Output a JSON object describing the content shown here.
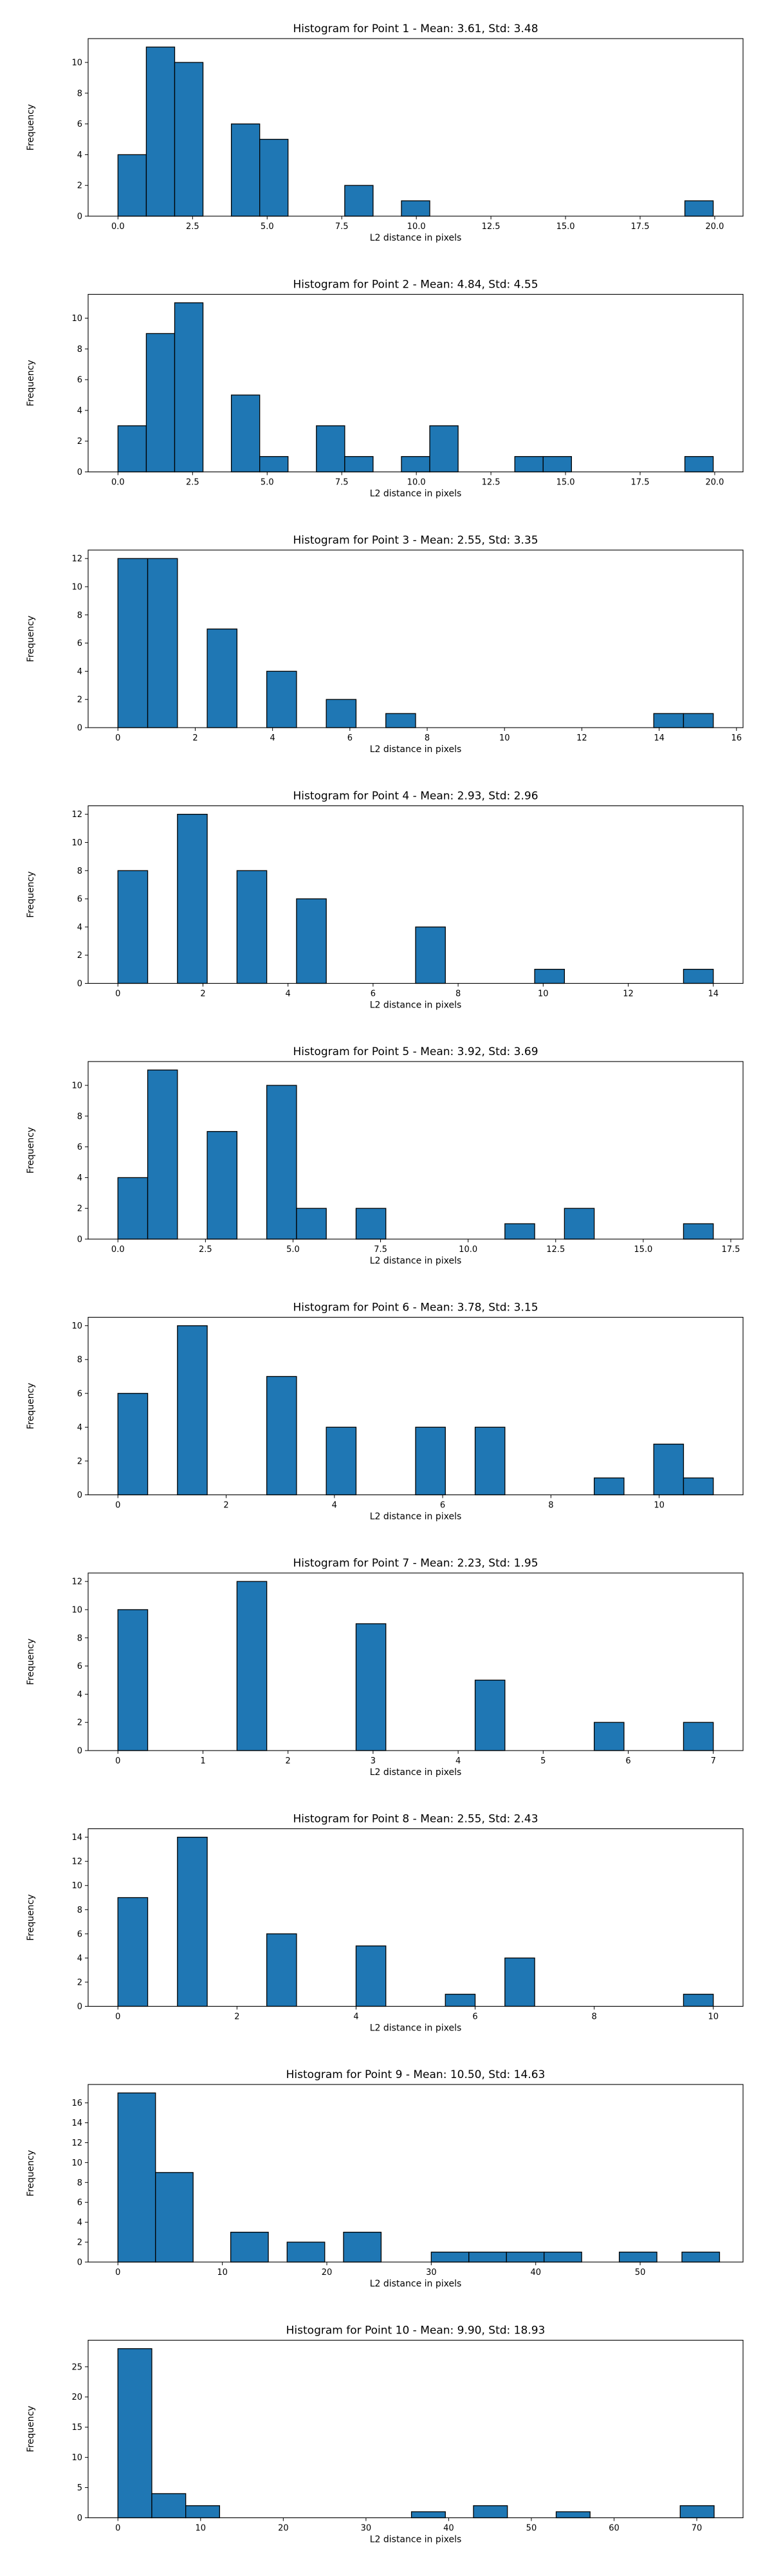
{
  "figure": {
    "background": "#ffffff",
    "bar_color": "#1f77b4",
    "edge_color": "#000000"
  },
  "chart_data": [
    {
      "type": "bar",
      "title": "Histogram for Point 1 - Mean: 3.61, Std: 3.48",
      "xlabel": "L2 distance in pixels",
      "ylabel": "Frequency",
      "xlim": [
        -1.0,
        20.95
      ],
      "ylim": [
        0,
        11.55
      ],
      "xticks": [
        0,
        2.5,
        5,
        7.5,
        10,
        12.5,
        15,
        17.5,
        20
      ],
      "xtick_labels": [
        "0.0",
        "2.5",
        "5.0",
        "7.5",
        "10.0",
        "12.5",
        "15.0",
        "17.5",
        "20.0"
      ],
      "yticks": [
        0,
        2,
        4,
        6,
        8,
        10
      ],
      "bins": [
        {
          "start": 0.0,
          "end": 0.95,
          "count": 4
        },
        {
          "start": 0.95,
          "end": 1.9,
          "count": 11
        },
        {
          "start": 1.9,
          "end": 2.85,
          "count": 10
        },
        {
          "start": 3.8,
          "end": 4.75,
          "count": 6
        },
        {
          "start": 4.75,
          "end": 5.7,
          "count": 5
        },
        {
          "start": 7.6,
          "end": 8.55,
          "count": 2
        },
        {
          "start": 9.5,
          "end": 10.45,
          "count": 1
        },
        {
          "start": 19.0,
          "end": 19.95,
          "count": 1
        }
      ]
    },
    {
      "type": "bar",
      "title": "Histogram for Point 2 - Mean: 4.84, Std: 4.55",
      "xlabel": "L2 distance in pixels",
      "ylabel": "Frequency",
      "xlim": [
        -1.0,
        20.95
      ],
      "ylim": [
        0,
        11.55
      ],
      "xticks": [
        0,
        2.5,
        5,
        7.5,
        10,
        12.5,
        15,
        17.5,
        20
      ],
      "xtick_labels": [
        "0.0",
        "2.5",
        "5.0",
        "7.5",
        "10.0",
        "12.5",
        "15.0",
        "17.5",
        "20.0"
      ],
      "yticks": [
        0,
        2,
        4,
        6,
        8,
        10
      ],
      "bins": [
        {
          "start": 0.0,
          "end": 0.95,
          "count": 3
        },
        {
          "start": 0.95,
          "end": 1.9,
          "count": 9
        },
        {
          "start": 1.9,
          "end": 2.85,
          "count": 11
        },
        {
          "start": 3.8,
          "end": 4.75,
          "count": 5
        },
        {
          "start": 4.75,
          "end": 5.7,
          "count": 1
        },
        {
          "start": 6.65,
          "end": 7.6,
          "count": 3
        },
        {
          "start": 7.6,
          "end": 8.55,
          "count": 1
        },
        {
          "start": 9.5,
          "end": 10.45,
          "count": 1
        },
        {
          "start": 10.45,
          "end": 11.4,
          "count": 3
        },
        {
          "start": 13.3,
          "end": 14.25,
          "count": 1
        },
        {
          "start": 14.25,
          "end": 15.2,
          "count": 1
        },
        {
          "start": 19.0,
          "end": 19.95,
          "count": 1
        }
      ]
    },
    {
      "type": "bar",
      "title": "Histogram for Point 3 - Mean: 2.55, Std: 3.35",
      "xlabel": "L2 distance in pixels",
      "ylabel": "Frequency",
      "xlim": [
        -0.77,
        16.17
      ],
      "ylim": [
        0,
        12.6
      ],
      "xticks": [
        0,
        2,
        4,
        6,
        8,
        10,
        12,
        14,
        16
      ],
      "xtick_labels": [
        "0",
        "2",
        "4",
        "6",
        "8",
        "10",
        "12",
        "14",
        "16"
      ],
      "yticks": [
        0,
        2,
        4,
        6,
        8,
        10,
        12
      ],
      "bins": [
        {
          "start": 0.0,
          "end": 0.77,
          "count": 12
        },
        {
          "start": 0.77,
          "end": 1.54,
          "count": 12
        },
        {
          "start": 2.31,
          "end": 3.08,
          "count": 7
        },
        {
          "start": 3.85,
          "end": 4.62,
          "count": 4
        },
        {
          "start": 5.39,
          "end": 6.16,
          "count": 2
        },
        {
          "start": 6.93,
          "end": 7.7,
          "count": 1
        },
        {
          "start": 13.86,
          "end": 14.63,
          "count": 1
        },
        {
          "start": 14.63,
          "end": 15.4,
          "count": 1
        }
      ]
    },
    {
      "type": "bar",
      "title": "Histogram for Point 4 - Mean: 2.93, Std: 2.96",
      "xlabel": "L2 distance in pixels",
      "ylabel": "Frequency",
      "xlim": [
        -0.7,
        14.7
      ],
      "ylim": [
        0,
        12.6
      ],
      "xticks": [
        0,
        2,
        4,
        6,
        8,
        10,
        12,
        14
      ],
      "xtick_labels": [
        "0",
        "2",
        "4",
        "6",
        "8",
        "10",
        "12",
        "14"
      ],
      "yticks": [
        0,
        2,
        4,
        6,
        8,
        10,
        12
      ],
      "bins": [
        {
          "start": 0.0,
          "end": 0.7,
          "count": 8
        },
        {
          "start": 1.4,
          "end": 2.1,
          "count": 12
        },
        {
          "start": 2.8,
          "end": 3.5,
          "count": 8
        },
        {
          "start": 4.2,
          "end": 4.9,
          "count": 6
        },
        {
          "start": 7.0,
          "end": 7.7,
          "count": 4
        },
        {
          "start": 9.8,
          "end": 10.5,
          "count": 1
        },
        {
          "start": 13.3,
          "end": 14.0,
          "count": 1
        }
      ]
    },
    {
      "type": "bar",
      "title": "Histogram for Point 5 - Mean: 3.92, Std: 3.69",
      "xlabel": "L2 distance in pixels",
      "ylabel": "Frequency",
      "xlim": [
        -0.85,
        17.85
      ],
      "ylim": [
        0,
        11.55
      ],
      "xticks": [
        0,
        2.5,
        5,
        7.5,
        10,
        12.5,
        15,
        17.5
      ],
      "xtick_labels": [
        "0.0",
        "2.5",
        "5.0",
        "7.5",
        "10.0",
        "12.5",
        "15.0",
        "17.5"
      ],
      "yticks": [
        0,
        2,
        4,
        6,
        8,
        10
      ],
      "bins": [
        {
          "start": 0.0,
          "end": 0.85,
          "count": 4
        },
        {
          "start": 0.85,
          "end": 1.7,
          "count": 11
        },
        {
          "start": 2.55,
          "end": 3.4,
          "count": 7
        },
        {
          "start": 4.25,
          "end": 5.1,
          "count": 10
        },
        {
          "start": 5.1,
          "end": 5.95,
          "count": 2
        },
        {
          "start": 6.8,
          "end": 7.65,
          "count": 2
        },
        {
          "start": 11.05,
          "end": 11.9,
          "count": 1
        },
        {
          "start": 12.75,
          "end": 13.6,
          "count": 2
        },
        {
          "start": 16.15,
          "end": 17.0,
          "count": 1
        }
      ]
    },
    {
      "type": "bar",
      "title": "Histogram for Point 6 - Mean: 3.78, Std: 3.15",
      "xlabel": "L2 distance in pixels",
      "ylabel": "Frequency",
      "xlim": [
        -0.55,
        11.55
      ],
      "ylim": [
        0,
        10.5
      ],
      "xticks": [
        0,
        2,
        4,
        6,
        8,
        10
      ],
      "xtick_labels": [
        "0",
        "2",
        "4",
        "6",
        "8",
        "10"
      ],
      "yticks": [
        0,
        2,
        4,
        6,
        8,
        10
      ],
      "bins": [
        {
          "start": 0.0,
          "end": 0.55,
          "count": 6
        },
        {
          "start": 1.1,
          "end": 1.65,
          "count": 10
        },
        {
          "start": 2.75,
          "end": 3.3,
          "count": 7
        },
        {
          "start": 3.85,
          "end": 4.4,
          "count": 4
        },
        {
          "start": 5.5,
          "end": 6.05,
          "count": 4
        },
        {
          "start": 6.6,
          "end": 7.15,
          "count": 4
        },
        {
          "start": 8.8,
          "end": 9.35,
          "count": 1
        },
        {
          "start": 9.9,
          "end": 10.45,
          "count": 3
        },
        {
          "start": 10.45,
          "end": 11.0,
          "count": 1
        }
      ]
    },
    {
      "type": "bar",
      "title": "Histogram for Point 7 - Mean: 2.23, Std: 1.95",
      "xlabel": "L2 distance in pixels",
      "ylabel": "Frequency",
      "xlim": [
        -0.35,
        7.35
      ],
      "ylim": [
        0,
        12.6
      ],
      "xticks": [
        0,
        1,
        2,
        3,
        4,
        5,
        6,
        7
      ],
      "xtick_labels": [
        "0",
        "1",
        "2",
        "3",
        "4",
        "5",
        "6",
        "7"
      ],
      "yticks": [
        0,
        2,
        4,
        6,
        8,
        10,
        12
      ],
      "bins": [
        {
          "start": 0.0,
          "end": 0.35,
          "count": 10
        },
        {
          "start": 1.4,
          "end": 1.75,
          "count": 12
        },
        {
          "start": 2.8,
          "end": 3.15,
          "count": 9
        },
        {
          "start": 4.2,
          "end": 4.55,
          "count": 5
        },
        {
          "start": 5.6,
          "end": 5.95,
          "count": 2
        },
        {
          "start": 6.65,
          "end": 7.0,
          "count": 2
        }
      ]
    },
    {
      "type": "bar",
      "title": "Histogram for Point 8 - Mean: 2.55, Std: 2.43",
      "xlabel": "L2 distance in pixels",
      "ylabel": "Frequency",
      "xlim": [
        -0.5,
        10.5
      ],
      "ylim": [
        0,
        14.7
      ],
      "xticks": [
        0,
        2,
        4,
        6,
        8,
        10
      ],
      "xtick_labels": [
        "0",
        "2",
        "4",
        "6",
        "8",
        "10"
      ],
      "yticks": [
        0,
        2,
        4,
        6,
        8,
        10,
        12,
        14
      ],
      "bins": [
        {
          "start": 0.0,
          "end": 0.5,
          "count": 9
        },
        {
          "start": 1.0,
          "end": 1.5,
          "count": 14
        },
        {
          "start": 2.5,
          "end": 3.0,
          "count": 6
        },
        {
          "start": 4.0,
          "end": 4.5,
          "count": 5
        },
        {
          "start": 5.5,
          "end": 6.0,
          "count": 1
        },
        {
          "start": 6.5,
          "end": 7.0,
          "count": 4
        },
        {
          "start": 9.5,
          "end": 10.0,
          "count": 1
        }
      ]
    },
    {
      "type": "bar",
      "title": "Histogram for Point 9 - Mean: 10.50, Std: 14.63",
      "xlabel": "L2 distance in pixels",
      "ylabel": "Frequency",
      "xlim": [
        -2.85,
        59.85
      ],
      "ylim": [
        0,
        17.85
      ],
      "xticks": [
        0,
        10,
        20,
        30,
        40,
        50
      ],
      "xtick_labels": [
        "0",
        "10",
        "20",
        "30",
        "40",
        "50"
      ],
      "yticks": [
        0,
        2,
        4,
        6,
        8,
        10,
        12,
        14,
        16
      ],
      "bins": [
        {
          "start": 0.0,
          "end": 3.6,
          "count": 17
        },
        {
          "start": 3.6,
          "end": 7.2,
          "count": 9
        },
        {
          "start": 10.8,
          "end": 14.4,
          "count": 3
        },
        {
          "start": 16.2,
          "end": 19.8,
          "count": 2
        },
        {
          "start": 21.6,
          "end": 25.2,
          "count": 3
        },
        {
          "start": 30.0,
          "end": 33.6,
          "count": 1
        },
        {
          "start": 33.6,
          "end": 37.2,
          "count": 1
        },
        {
          "start": 37.2,
          "end": 40.8,
          "count": 1
        },
        {
          "start": 40.8,
          "end": 44.4,
          "count": 1
        },
        {
          "start": 48.0,
          "end": 51.6,
          "count": 1
        },
        {
          "start": 54.0,
          "end": 57.6,
          "count": 1
        }
      ]
    },
    {
      "type": "bar",
      "title": "Histogram for Point 10 - Mean: 9.90, Std: 18.93",
      "xlabel": "L2 distance in pixels",
      "ylabel": "Frequency",
      "xlim": [
        -3.6,
        75.6
      ],
      "ylim": [
        0,
        29.4
      ],
      "xticks": [
        0,
        10,
        20,
        30,
        40,
        50,
        60,
        70
      ],
      "xtick_labels": [
        "0",
        "10",
        "20",
        "30",
        "40",
        "50",
        "60",
        "70"
      ],
      "yticks": [
        0,
        5,
        10,
        15,
        20,
        25
      ],
      "bins": [
        {
          "start": 0.0,
          "end": 4.1,
          "count": 28
        },
        {
          "start": 4.1,
          "end": 8.2,
          "count": 4
        },
        {
          "start": 8.2,
          "end": 12.3,
          "count": 2
        },
        {
          "start": 35.5,
          "end": 39.6,
          "count": 1
        },
        {
          "start": 43.0,
          "end": 47.1,
          "count": 2
        },
        {
          "start": 53.0,
          "end": 57.1,
          "count": 1
        },
        {
          "start": 68.0,
          "end": 72.1,
          "count": 2
        }
      ]
    }
  ]
}
